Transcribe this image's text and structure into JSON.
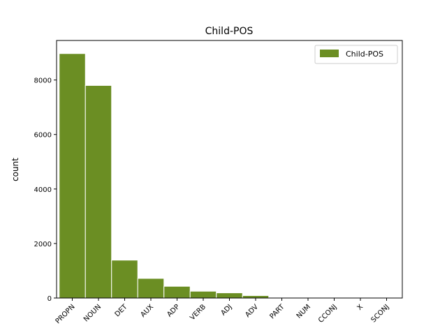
{
  "chart_data": {
    "type": "bar",
    "title": "Child-POS",
    "xlabel": "",
    "ylabel": "count",
    "categories": [
      "PROPN",
      "NOUN",
      "DET",
      "AUX",
      "ADP",
      "VERB",
      "ADJ",
      "ADV",
      "PART",
      "NUM",
      "CCONJ",
      "X",
      "SCONJ"
    ],
    "series": [
      {
        "name": "Child-POS",
        "values": [
          8970,
          7800,
          1390,
          720,
          430,
          250,
          190,
          90,
          8,
          5,
          4,
          3,
          2
        ]
      }
    ],
    "ylim": [
      0,
      9450
    ],
    "yticks": [
      0,
      2000,
      4000,
      6000,
      8000
    ],
    "grid": false,
    "legend_position": "upper-right",
    "bar_color": "#6b8e23",
    "edge_color": "#ffffff"
  }
}
